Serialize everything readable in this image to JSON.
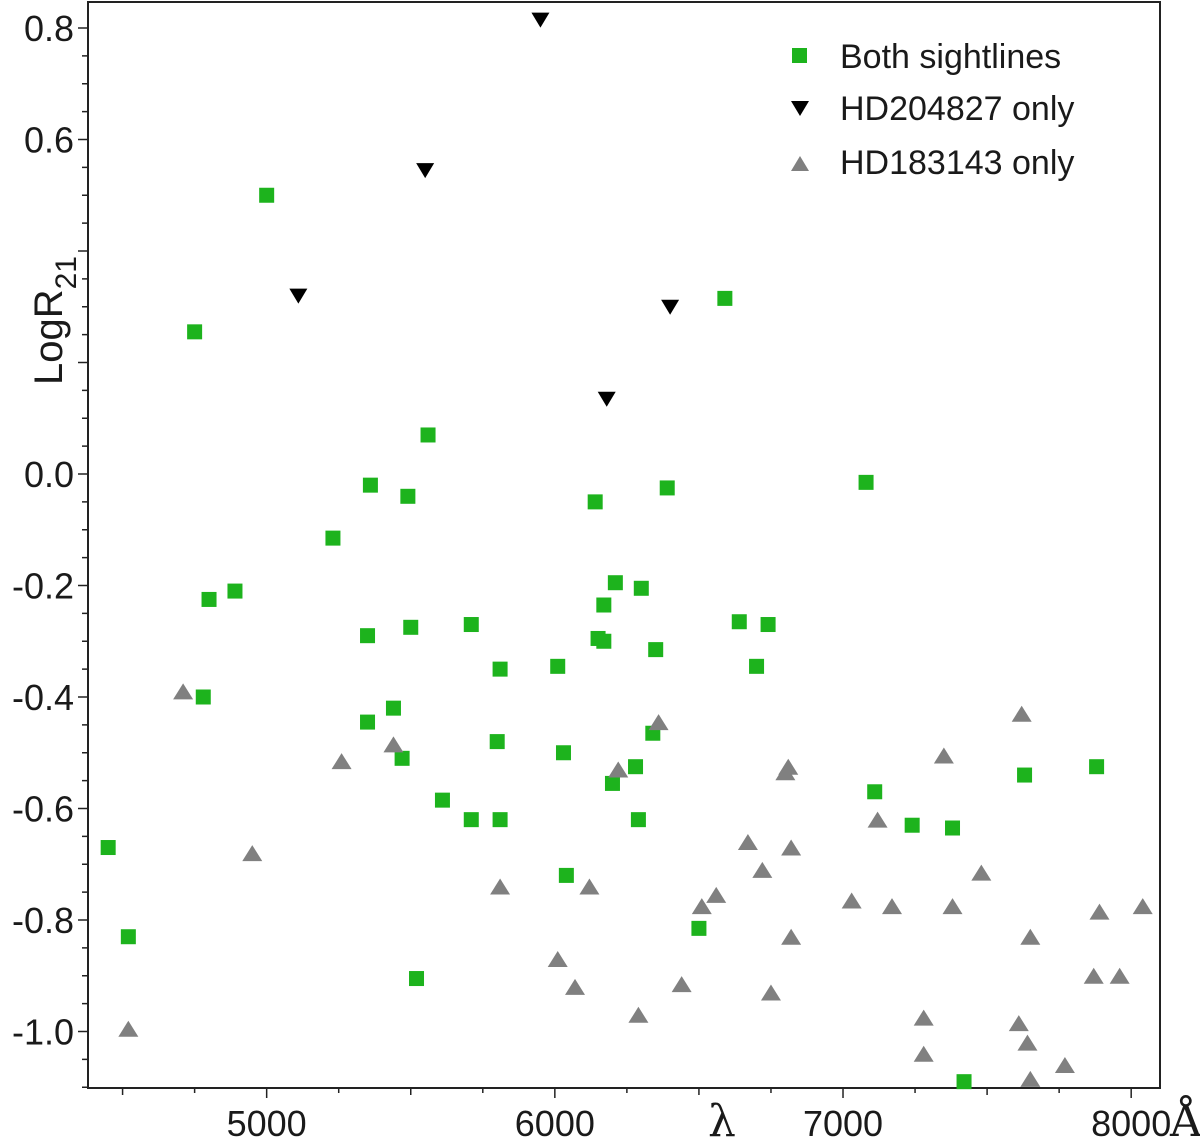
{
  "chart_data": {
    "type": "scatter",
    "ylabel": "LogR",
    "ylabel_sub": "21",
    "xlabel": "λ",
    "xunit": "Å",
    "xlim": [
      4380,
      8100
    ],
    "ylim": [
      -1.1,
      0.85
    ],
    "x_ticks": [
      5000,
      6000,
      7000,
      8000
    ],
    "y_ticks": [
      0.8,
      0.6,
      0.0,
      -0.2,
      -0.4,
      -0.6,
      -0.8,
      -1.0
    ],
    "grid": false,
    "legend_position": "top-right",
    "series": [
      {
        "name": "Both sightlines",
        "marker": "square",
        "color": "#1db31d",
        "points": [
          [
            4450,
            -0.67
          ],
          [
            4520,
            -0.83
          ],
          [
            4750,
            0.255
          ],
          [
            4780,
            -0.4
          ],
          [
            4800,
            -0.225
          ],
          [
            4890,
            -0.21
          ],
          [
            5000,
            0.5
          ],
          [
            5230,
            -0.115
          ],
          [
            5350,
            -0.29
          ],
          [
            5350,
            -0.445
          ],
          [
            5360,
            -0.02
          ],
          [
            5440,
            -0.42
          ],
          [
            5470,
            -0.51
          ],
          [
            5490,
            -0.04
          ],
          [
            5500,
            -0.275
          ],
          [
            5520,
            -0.905
          ],
          [
            5560,
            0.07
          ],
          [
            5610,
            -0.585
          ],
          [
            5710,
            -0.27
          ],
          [
            5710,
            -0.62
          ],
          [
            5800,
            -0.48
          ],
          [
            5810,
            -0.35
          ],
          [
            5810,
            -0.62
          ],
          [
            6010,
            -0.345
          ],
          [
            6030,
            -0.5
          ],
          [
            6040,
            -0.72
          ],
          [
            6140,
            -0.05
          ],
          [
            6150,
            -0.295
          ],
          [
            6170,
            -0.235
          ],
          [
            6170,
            -0.3
          ],
          [
            6200,
            -0.555
          ],
          [
            6210,
            -0.195
          ],
          [
            6280,
            -0.525
          ],
          [
            6290,
            -0.62
          ],
          [
            6300,
            -0.205
          ],
          [
            6340,
            -0.465
          ],
          [
            6350,
            -0.315
          ],
          [
            6390,
            -0.025
          ],
          [
            6500,
            -0.815
          ],
          [
            6590,
            0.315
          ],
          [
            6640,
            -0.265
          ],
          [
            6700,
            -0.345
          ],
          [
            6740,
            -0.27
          ],
          [
            7080,
            -0.015
          ],
          [
            7110,
            -0.57
          ],
          [
            7240,
            -0.63
          ],
          [
            7380,
            -0.635
          ],
          [
            7420,
            -1.09
          ],
          [
            7630,
            -0.54
          ],
          [
            7880,
            -0.525
          ]
        ]
      },
      {
        "name": "HD204827 only",
        "marker": "triangle-down",
        "color": "#000000",
        "points": [
          [
            5110,
            0.32
          ],
          [
            5550,
            0.545
          ],
          [
            5950,
            0.815
          ],
          [
            6180,
            0.135
          ],
          [
            6400,
            0.3
          ]
        ]
      },
      {
        "name": "HD183143 only",
        "marker": "triangle-up",
        "color": "#808080",
        "points": [
          [
            4520,
            -0.995
          ],
          [
            4710,
            -0.39
          ],
          [
            4950,
            -0.68
          ],
          [
            5260,
            -0.515
          ],
          [
            5440,
            -0.485
          ],
          [
            5810,
            -0.74
          ],
          [
            6010,
            -0.87
          ],
          [
            6070,
            -0.92
          ],
          [
            6120,
            -0.74
          ],
          [
            6220,
            -0.53
          ],
          [
            6290,
            -0.97
          ],
          [
            6360,
            -0.445
          ],
          [
            6440,
            -0.915
          ],
          [
            6510,
            -0.775
          ],
          [
            6560,
            -0.755
          ],
          [
            6670,
            -0.66
          ],
          [
            6720,
            -0.71
          ],
          [
            6750,
            -0.93
          ],
          [
            6800,
            -0.535
          ],
          [
            6810,
            -0.525
          ],
          [
            6820,
            -0.67
          ],
          [
            6820,
            -0.83
          ],
          [
            7030,
            -0.765
          ],
          [
            7120,
            -0.62
          ],
          [
            7170,
            -0.775
          ],
          [
            7280,
            -0.975
          ],
          [
            7280,
            -1.04
          ],
          [
            7350,
            -0.505
          ],
          [
            7380,
            -0.775
          ],
          [
            7480,
            -0.715
          ],
          [
            7610,
            -0.985
          ],
          [
            7620,
            -0.43
          ],
          [
            7640,
            -1.02
          ],
          [
            7650,
            -0.83
          ],
          [
            7650,
            -1.085
          ],
          [
            7770,
            -1.06
          ],
          [
            7870,
            -0.9
          ],
          [
            7890,
            -0.785
          ],
          [
            7960,
            -0.9
          ],
          [
            8040,
            -0.775
          ]
        ]
      }
    ]
  }
}
